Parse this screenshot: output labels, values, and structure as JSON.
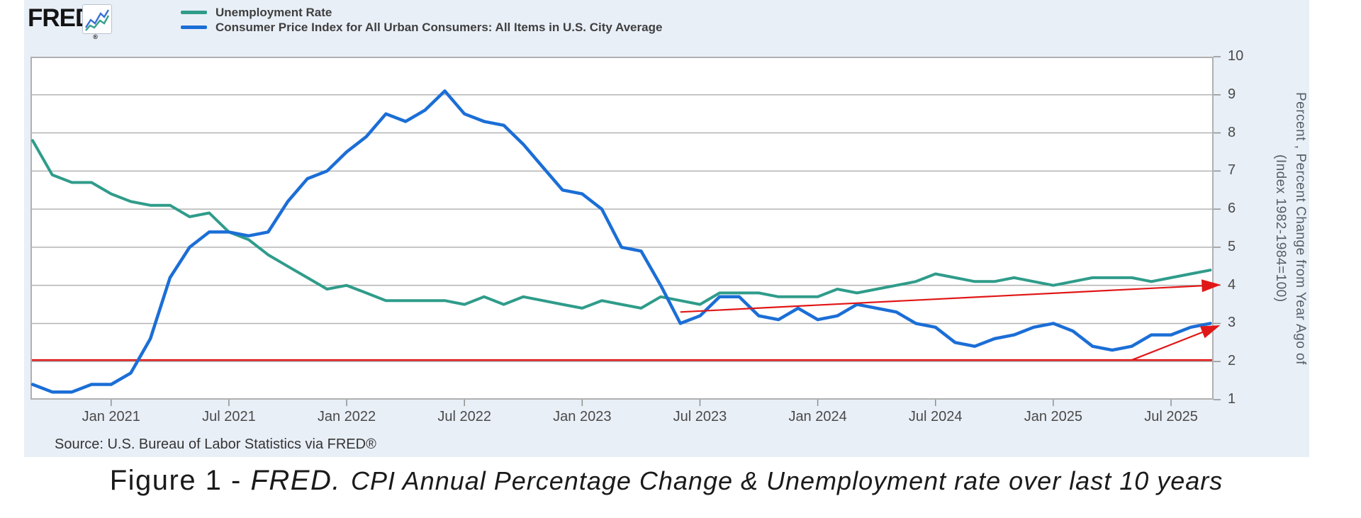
{
  "header": {
    "logo_text": "FRED",
    "logo_registered": "®"
  },
  "legend": {
    "items": [
      {
        "label": "Unemployment Rate",
        "color": "#2f9c8a"
      },
      {
        "label": "Consumer Price Index for All Urban Consumers: All Items in U.S. City Average",
        "color": "#1b6ed6"
      }
    ]
  },
  "chart_data": {
    "type": "line",
    "ylim": [
      1,
      10
    ],
    "grid": true,
    "legend_position": "top-left",
    "y_ticks": [
      10,
      9,
      8,
      7,
      6,
      5,
      4,
      3,
      2,
      1
    ],
    "y_axis_title_lines": [
      "Percent , Percent Change from Year Ago of",
      "(Index 1982-1984=100)"
    ],
    "months": [
      "2020-09",
      "2020-10",
      "2020-11",
      "2020-12",
      "2021-01",
      "2021-02",
      "2021-03",
      "2021-04",
      "2021-05",
      "2021-06",
      "2021-07",
      "2021-08",
      "2021-09",
      "2021-10",
      "2021-11",
      "2021-12",
      "2022-01",
      "2022-02",
      "2022-03",
      "2022-04",
      "2022-05",
      "2022-06",
      "2022-07",
      "2022-08",
      "2022-09",
      "2022-10",
      "2022-11",
      "2022-12",
      "2023-01",
      "2023-02",
      "2023-03",
      "2023-04",
      "2023-05",
      "2023-06",
      "2023-07",
      "2023-08",
      "2023-09",
      "2023-10",
      "2023-11",
      "2023-12",
      "2024-01",
      "2024-02",
      "2024-03",
      "2024-04",
      "2024-05",
      "2024-06",
      "2024-07",
      "2024-08",
      "2024-09",
      "2024-10",
      "2024-11",
      "2024-12",
      "2025-01",
      "2025-02",
      "2025-03",
      "2025-04",
      "2025-05",
      "2025-06",
      "2025-07",
      "2025-08",
      "2025-09"
    ],
    "x_ticks": [
      {
        "month": "2021-01",
        "label": "Jan 2021"
      },
      {
        "month": "2021-07",
        "label": "Jul 2021"
      },
      {
        "month": "2022-01",
        "label": "Jan 2022"
      },
      {
        "month": "2022-07",
        "label": "Jul 2022"
      },
      {
        "month": "2023-01",
        "label": "Jan 2023"
      },
      {
        "month": "2023-07",
        "label": "Jul 2023"
      },
      {
        "month": "2024-01",
        "label": "Jan 2024"
      },
      {
        "month": "2024-07",
        "label": "Jul 2024"
      },
      {
        "month": "2025-01",
        "label": "Jan 2025"
      },
      {
        "month": "2025-07",
        "label": "Jul 2025"
      }
    ],
    "series": [
      {
        "name": "Unemployment Rate",
        "color": "#2f9c8a",
        "values": [
          7.8,
          6.9,
          6.7,
          6.7,
          6.4,
          6.2,
          6.1,
          6.1,
          5.8,
          5.9,
          5.4,
          5.2,
          4.8,
          4.5,
          4.2,
          3.9,
          4.0,
          3.8,
          3.6,
          3.6,
          3.6,
          3.6,
          3.5,
          3.7,
          3.5,
          3.7,
          3.6,
          3.5,
          3.4,
          3.6,
          3.5,
          3.4,
          3.7,
          3.6,
          3.5,
          3.8,
          3.8,
          3.8,
          3.7,
          3.7,
          3.7,
          3.9,
          3.8,
          3.9,
          4.0,
          4.1,
          4.3,
          4.2,
          4.1,
          4.1,
          4.2,
          4.1,
          4.0,
          4.1,
          4.2,
          4.2,
          4.2,
          4.1,
          4.2,
          4.3,
          4.4
        ]
      },
      {
        "name": "Consumer Price Index for All Urban Consumers: All Items in U.S. City Average",
        "color": "#1b6ed6",
        "values": [
          1.4,
          1.2,
          1.2,
          1.4,
          1.4,
          1.7,
          2.6,
          4.2,
          5.0,
          5.4,
          5.4,
          5.3,
          5.4,
          6.2,
          6.8,
          7.0,
          7.5,
          7.9,
          8.5,
          8.3,
          8.6,
          9.1,
          8.5,
          8.3,
          8.2,
          7.7,
          7.1,
          6.5,
          6.4,
          6.0,
          5.0,
          4.9,
          4.0,
          3.0,
          3.2,
          3.7,
          3.7,
          3.2,
          3.1,
          3.4,
          3.1,
          3.2,
          3.5,
          3.4,
          3.3,
          3.0,
          2.9,
          2.5,
          2.4,
          2.6,
          2.7,
          2.9,
          3.0,
          2.8,
          2.4,
          2.3,
          2.4,
          2.7,
          2.7,
          2.9,
          3.0
        ]
      }
    ],
    "annotations": {
      "hline": {
        "value": 2.04,
        "color": "#e11717"
      },
      "arrows": [
        {
          "from_month": "2023-06",
          "from_value": 3.3,
          "to_month": "2025-09",
          "to_value": 4.0,
          "color": "#e11717"
        },
        {
          "from_month": "2025-05",
          "from_value": 2.04,
          "to_month": "2025-09",
          "to_value": 2.85,
          "color": "#e11717"
        }
      ]
    }
  },
  "source_note": "Source: U.S. Bureau of Labor Statistics via FRED®",
  "caption": {
    "prefix": "Figure 1 - ",
    "brand": "FRED.",
    "rest": "CPI Annual Percentage Change & Unemployment rate over last 10 years"
  }
}
